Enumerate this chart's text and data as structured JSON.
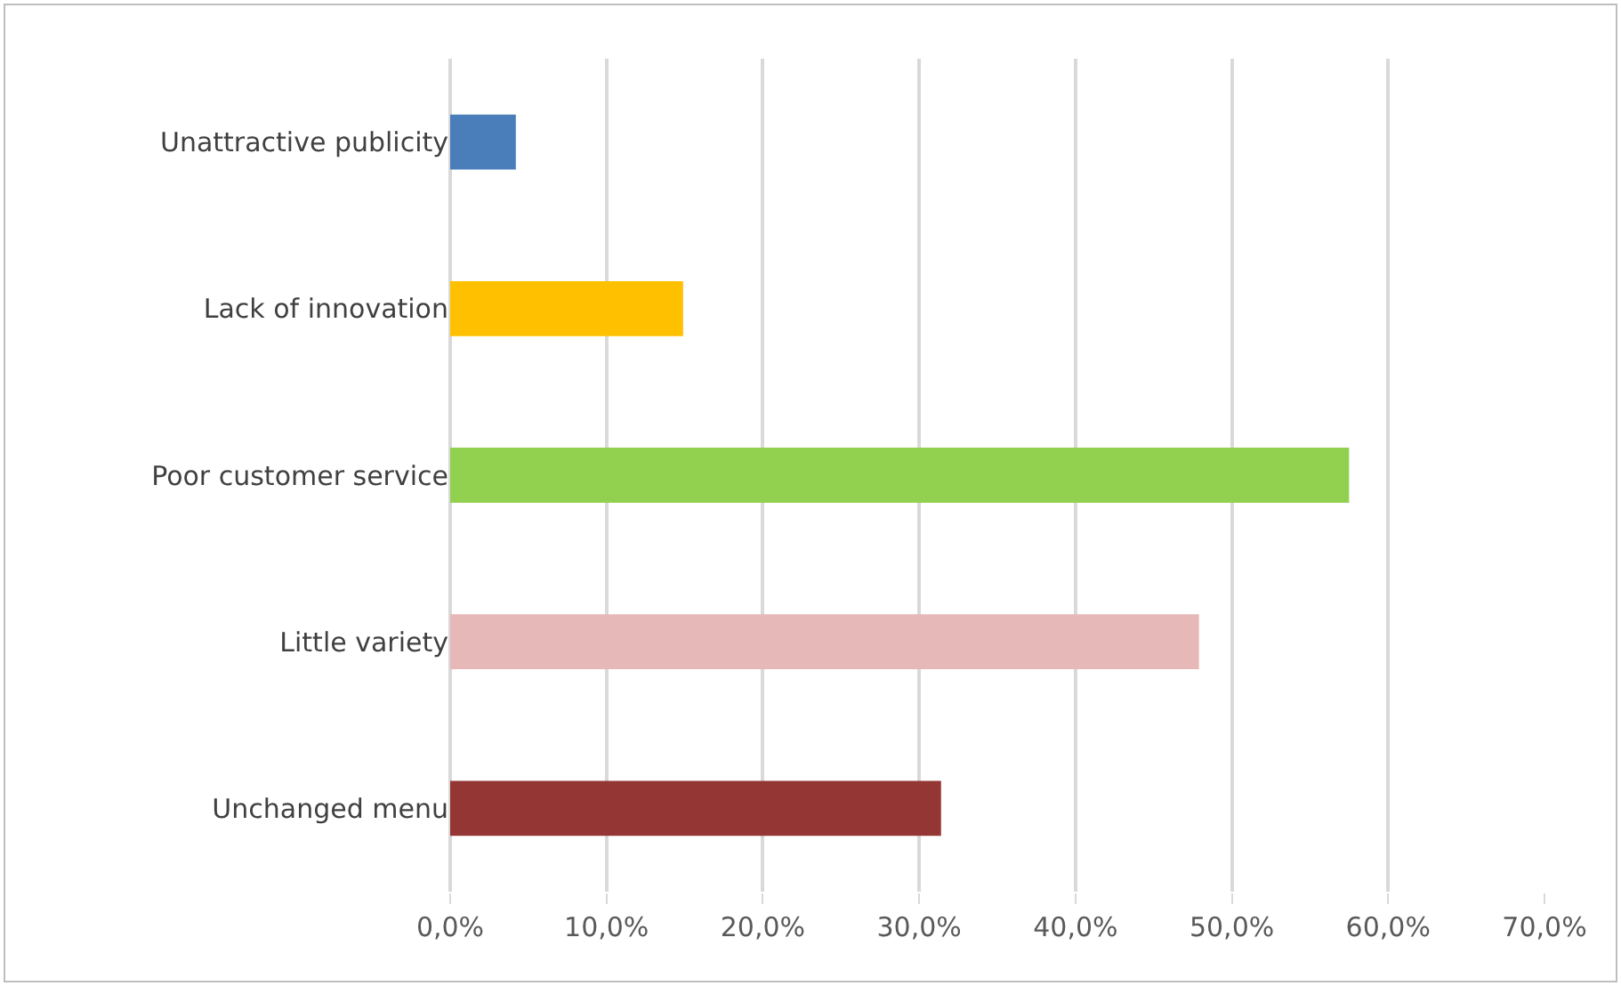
{
  "chart_data": {
    "type": "bar",
    "orientation": "horizontal",
    "categories": [
      "Unattractive publicity",
      "Lack of innovation",
      "Poor customer service",
      "Little variety",
      "Unchanged menu"
    ],
    "values": [
      4.2,
      14.9,
      57.5,
      47.9,
      31.4
    ],
    "colors": [
      "#4a7ebb",
      "#ffc000",
      "#92d050",
      "#e6b9b8",
      "#943634"
    ],
    "xlim": [
      0,
      70
    ],
    "xticks": [
      {
        "value": 0,
        "label": "0,0%"
      },
      {
        "value": 10,
        "label": "10,0%"
      },
      {
        "value": 20,
        "label": "20,0%"
      },
      {
        "value": 30,
        "label": "30,0%"
      },
      {
        "value": 40,
        "label": "40,0%"
      },
      {
        "value": 50,
        "label": "50,0%"
      },
      {
        "value": 60,
        "label": "60,0%"
      },
      {
        "value": 70,
        "label": "70,0%"
      }
    ],
    "grid": "x"
  }
}
